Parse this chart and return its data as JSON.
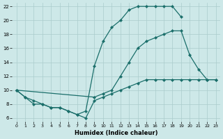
{
  "xlabel": "Humidex (Indice chaleur)",
  "bg_color": "#cde8e8",
  "grid_color": "#aacccc",
  "line_color": "#1a6e6a",
  "xlim": [
    -0.5,
    23.5
  ],
  "ylim": [
    5.5,
    22.5
  ],
  "xticks": [
    0,
    1,
    2,
    3,
    4,
    5,
    6,
    7,
    8,
    9,
    10,
    11,
    12,
    13,
    14,
    15,
    16,
    17,
    18,
    19,
    20,
    21,
    22,
    23
  ],
  "yticks": [
    6,
    8,
    10,
    12,
    14,
    16,
    18,
    20,
    22
  ],
  "line1_x": [
    0,
    1,
    2,
    3,
    4,
    5,
    6,
    7,
    8,
    9,
    10,
    11,
    12,
    13,
    14,
    15,
    16,
    17,
    18,
    19
  ],
  "line1_y": [
    10,
    9,
    8,
    8,
    7.5,
    7.5,
    7,
    6.5,
    7,
    13.5,
    17,
    19,
    20,
    21.5,
    22,
    22,
    22,
    22,
    22,
    20.5
  ],
  "line2_x": [
    0,
    9,
    10,
    11,
    12,
    13,
    14,
    15,
    16,
    17,
    18,
    19,
    20,
    21,
    22,
    23
  ],
  "line2_y": [
    10,
    9,
    9.5,
    10,
    12,
    14,
    16,
    17,
    17.5,
    18,
    18.5,
    18.5,
    15,
    13,
    11.5,
    11.5
  ],
  "line3_x": [
    0,
    1,
    2,
    3,
    4,
    5,
    6,
    7,
    8,
    9,
    10,
    11,
    12,
    13,
    14,
    15,
    16,
    17,
    18,
    19,
    20,
    21,
    22,
    23
  ],
  "line3_y": [
    10,
    9,
    8.5,
    8,
    7.5,
    7.5,
    7,
    6.5,
    6,
    8.5,
    9,
    9.5,
    10,
    10.5,
    11,
    11.5,
    11.5,
    11.5,
    11.5,
    11.5,
    11.5,
    11.5,
    11.5,
    11.5
  ]
}
